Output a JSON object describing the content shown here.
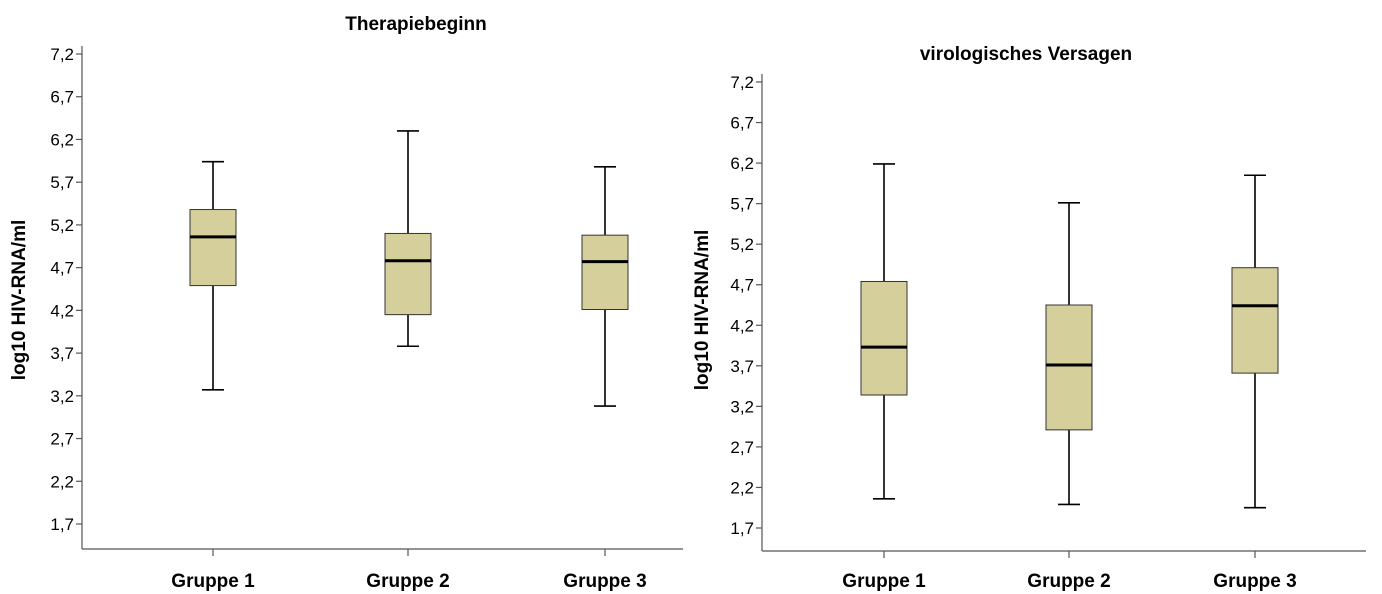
{
  "chart_data": [
    {
      "type": "box",
      "title": "Therapiebeginn",
      "xlabel": "",
      "ylabel": "log10 HIV-RNA/ml",
      "ylim": [
        1.5,
        7.3
      ],
      "yticks": [
        7.2,
        6.7,
        6.2,
        5.7,
        5.2,
        4.7,
        4.2,
        3.7,
        3.2,
        2.7,
        2.2,
        1.7
      ],
      "ytick_labels": [
        "7,2",
        "6,7",
        "6,2",
        "5,7",
        "5,2",
        "4,7",
        "4,2",
        "3,7",
        "3,2",
        "2,7",
        "2,2",
        "1,7"
      ],
      "categories": [
        "Gruppe 1",
        "Gruppe 2",
        "Gruppe 3"
      ],
      "boxes": [
        {
          "min": 3.27,
          "q1": 4.49,
          "median": 5.06,
          "q3": 5.38,
          "max": 5.94
        },
        {
          "min": 3.78,
          "q1": 4.15,
          "median": 4.78,
          "q3": 5.1,
          "max": 6.3
        },
        {
          "min": 3.08,
          "q1": 4.21,
          "median": 4.77,
          "q3": 5.08,
          "max": 5.88
        }
      ],
      "box_color": "#d5cf9b"
    },
    {
      "type": "box",
      "title": "virologisches Versagen",
      "xlabel": "",
      "ylabel": "log10 HIV-RNA/ml",
      "ylim": [
        1.5,
        7.4
      ],
      "yticks": [
        7.2,
        6.7,
        6.2,
        5.7,
        5.2,
        4.7,
        4.2,
        3.7,
        3.2,
        2.7,
        2.2,
        1.7
      ],
      "ytick_labels": [
        "7,2",
        "6,7",
        "6,2",
        "5,7",
        "5,2",
        "4,7",
        "4,2",
        "3,7",
        "3,2",
        "2,7",
        "2,2",
        "1,7"
      ],
      "categories": [
        "Gruppe 1",
        "Gruppe 2",
        "Gruppe 3"
      ],
      "boxes": [
        {
          "min": 2.06,
          "q1": 3.34,
          "median": 3.93,
          "q3": 4.74,
          "max": 6.19
        },
        {
          "min": 1.99,
          "q1": 2.91,
          "median": 3.71,
          "q3": 4.45,
          "max": 5.71
        },
        {
          "min": 1.95,
          "q1": 3.61,
          "median": 4.44,
          "q3": 4.91,
          "max": 6.05
        }
      ],
      "box_color": "#d5cf9b"
    }
  ]
}
